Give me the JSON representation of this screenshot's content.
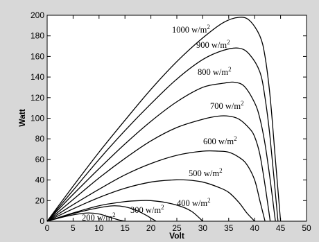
{
  "chart_data": {
    "type": "line",
    "xlabel": "Volt",
    "ylabel": "Watt",
    "xlim": [
      0,
      50
    ],
    "ylim": [
      0,
      200
    ],
    "xticks": [
      0,
      5,
      10,
      15,
      20,
      25,
      30,
      35,
      40,
      45,
      50
    ],
    "yticks": [
      0,
      20,
      40,
      60,
      80,
      100,
      120,
      140,
      160,
      180,
      200
    ],
    "grid": false,
    "line_color": "#000000",
    "background": "#ffffff",
    "series": [
      {
        "name": "1000 w/m2",
        "label": {
          "base": "1000 w/m",
          "sup": "2"
        },
        "points": [
          [
            0,
            0
          ],
          [
            5,
            34
          ],
          [
            10,
            67
          ],
          [
            15,
            98
          ],
          [
            20,
            128
          ],
          [
            25,
            155
          ],
          [
            30,
            178
          ],
          [
            34,
            193
          ],
          [
            37,
            198
          ],
          [
            39,
            195
          ],
          [
            41,
            180
          ],
          [
            42,
            160
          ],
          [
            43,
            120
          ],
          [
            44,
            60
          ],
          [
            45,
            0
          ]
        ]
      },
      {
        "name": "900 w/m2",
        "label": {
          "base": "900 w/m",
          "sup": "2"
        },
        "points": [
          [
            0,
            0
          ],
          [
            5,
            30
          ],
          [
            10,
            60
          ],
          [
            15,
            88
          ],
          [
            20,
            114
          ],
          [
            25,
            138
          ],
          [
            30,
            157
          ],
          [
            34,
            166
          ],
          [
            37,
            168
          ],
          [
            39,
            162
          ],
          [
            41,
            145
          ],
          [
            42,
            120
          ],
          [
            43,
            80
          ],
          [
            44.5,
            0
          ]
        ]
      },
      {
        "name": "800 w/m2",
        "label": {
          "base": "800 w/m",
          "sup": "2"
        },
        "points": [
          [
            0,
            0
          ],
          [
            5,
            26
          ],
          [
            10,
            51
          ],
          [
            15,
            75
          ],
          [
            20,
            97
          ],
          [
            25,
            116
          ],
          [
            30,
            130
          ],
          [
            34,
            134
          ],
          [
            36,
            135
          ],
          [
            38,
            131
          ],
          [
            40,
            115
          ],
          [
            41,
            100
          ],
          [
            42,
            75
          ],
          [
            43,
            40
          ],
          [
            44,
            0
          ]
        ]
      },
      {
        "name": "700 w/m2",
        "label": {
          "base": "700 w/m",
          "sup": "2"
        },
        "points": [
          [
            0,
            0
          ],
          [
            5,
            21
          ],
          [
            10,
            42
          ],
          [
            15,
            61
          ],
          [
            20,
            78
          ],
          [
            25,
            91
          ],
          [
            30,
            99
          ],
          [
            33,
            102
          ],
          [
            35,
            102
          ],
          [
            37,
            99
          ],
          [
            39,
            90
          ],
          [
            40,
            82
          ],
          [
            41,
            65
          ],
          [
            42,
            35
          ],
          [
            43,
            0
          ]
        ]
      },
      {
        "name": "600 w/m2",
        "label": {
          "base": "600 w/m",
          "sup": "2"
        },
        "points": [
          [
            0,
            0
          ],
          [
            5,
            16
          ],
          [
            10,
            31
          ],
          [
            15,
            45
          ],
          [
            20,
            56
          ],
          [
            25,
            64
          ],
          [
            30,
            68
          ],
          [
            33,
            68
          ],
          [
            35,
            67
          ],
          [
            37,
            62
          ],
          [
            38.5,
            55
          ],
          [
            40,
            40
          ],
          [
            41,
            20
          ],
          [
            42,
            0
          ]
        ]
      },
      {
        "name": "500 w/m2",
        "label": {
          "base": "500 w/m",
          "sup": "2"
        },
        "points": [
          [
            0,
            0
          ],
          [
            5,
            12
          ],
          [
            10,
            23
          ],
          [
            15,
            32
          ],
          [
            20,
            38
          ],
          [
            24,
            40
          ],
          [
            27,
            40
          ],
          [
            30,
            38
          ],
          [
            33,
            33
          ],
          [
            35,
            28
          ],
          [
            37,
            18
          ],
          [
            38.5,
            8
          ],
          [
            40,
            0
          ]
        ]
      },
      {
        "name": "400 w/m2",
        "label": {
          "base": "400 w/m",
          "sup": "2"
        },
        "points": [
          [
            0,
            0
          ],
          [
            5,
            8
          ],
          [
            10,
            15
          ],
          [
            15,
            19
          ],
          [
            18,
            20
          ],
          [
            20,
            20
          ],
          [
            23,
            18
          ],
          [
            26,
            14
          ],
          [
            28,
            9
          ],
          [
            30,
            0
          ]
        ]
      },
      {
        "name": "300 w/m2",
        "label": {
          "base": "300 w/m",
          "sup": "2"
        },
        "points": [
          [
            0,
            0
          ],
          [
            4,
            6
          ],
          [
            8,
            11
          ],
          [
            11,
            14
          ],
          [
            13,
            15
          ],
          [
            15,
            14
          ],
          [
            17,
            11
          ],
          [
            19,
            6
          ],
          [
            20,
            3
          ],
          [
            21,
            0
          ]
        ]
      },
      {
        "name": "200 w/m2",
        "label": {
          "base": "200 w/m",
          "sup": "2"
        },
        "points": [
          [
            0,
            0
          ],
          [
            3,
            4
          ],
          [
            6,
            7
          ],
          [
            8,
            8
          ],
          [
            10,
            7
          ],
          [
            12,
            4
          ],
          [
            14,
            1
          ],
          [
            15,
            0
          ]
        ]
      }
    ]
  }
}
